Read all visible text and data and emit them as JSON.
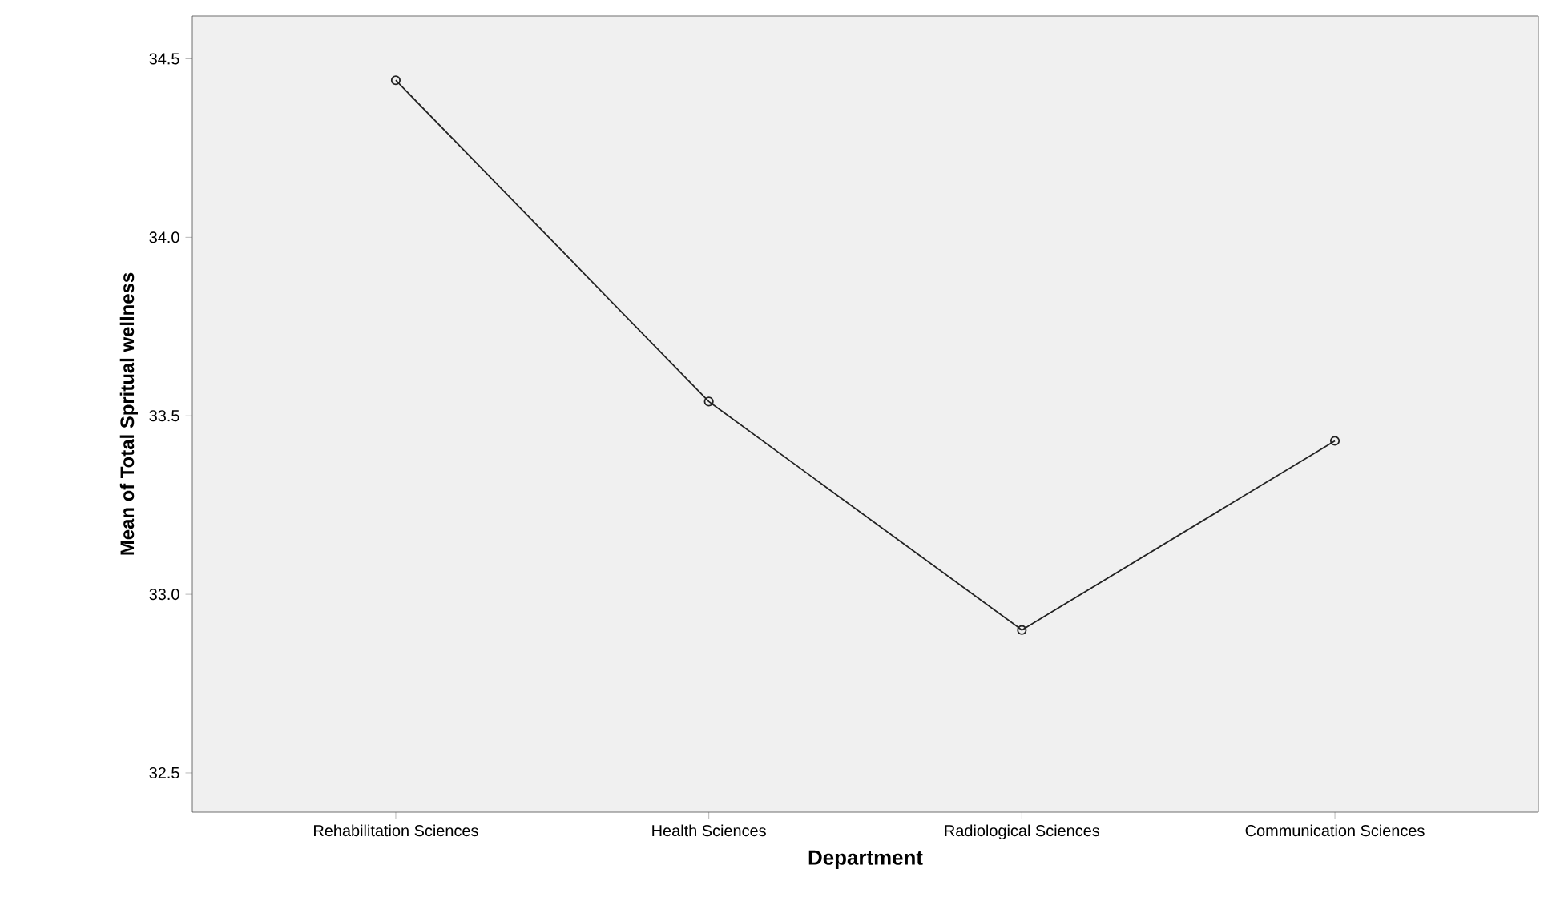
{
  "chart_data": {
    "type": "line",
    "xlabel": "Department",
    "ylabel": "Mean of Total Spritual wellness",
    "categories": [
      "Rehabilitation Sciences",
      "Health Sciences",
      "Radiological Sciences",
      "Communication Sciences"
    ],
    "values": [
      34.44,
      33.54,
      32.9,
      33.43
    ],
    "color": "#222222",
    "marker": "circle",
    "line_style": "solid",
    "ylim": [
      32.39,
      34.62
    ],
    "yticks": [
      32.5,
      {
        "value": 33,
        "label": "33.0"
      },
      33.5,
      {
        "value": 34,
        "label": "34.0"
      },
      34.5
    ]
  }
}
